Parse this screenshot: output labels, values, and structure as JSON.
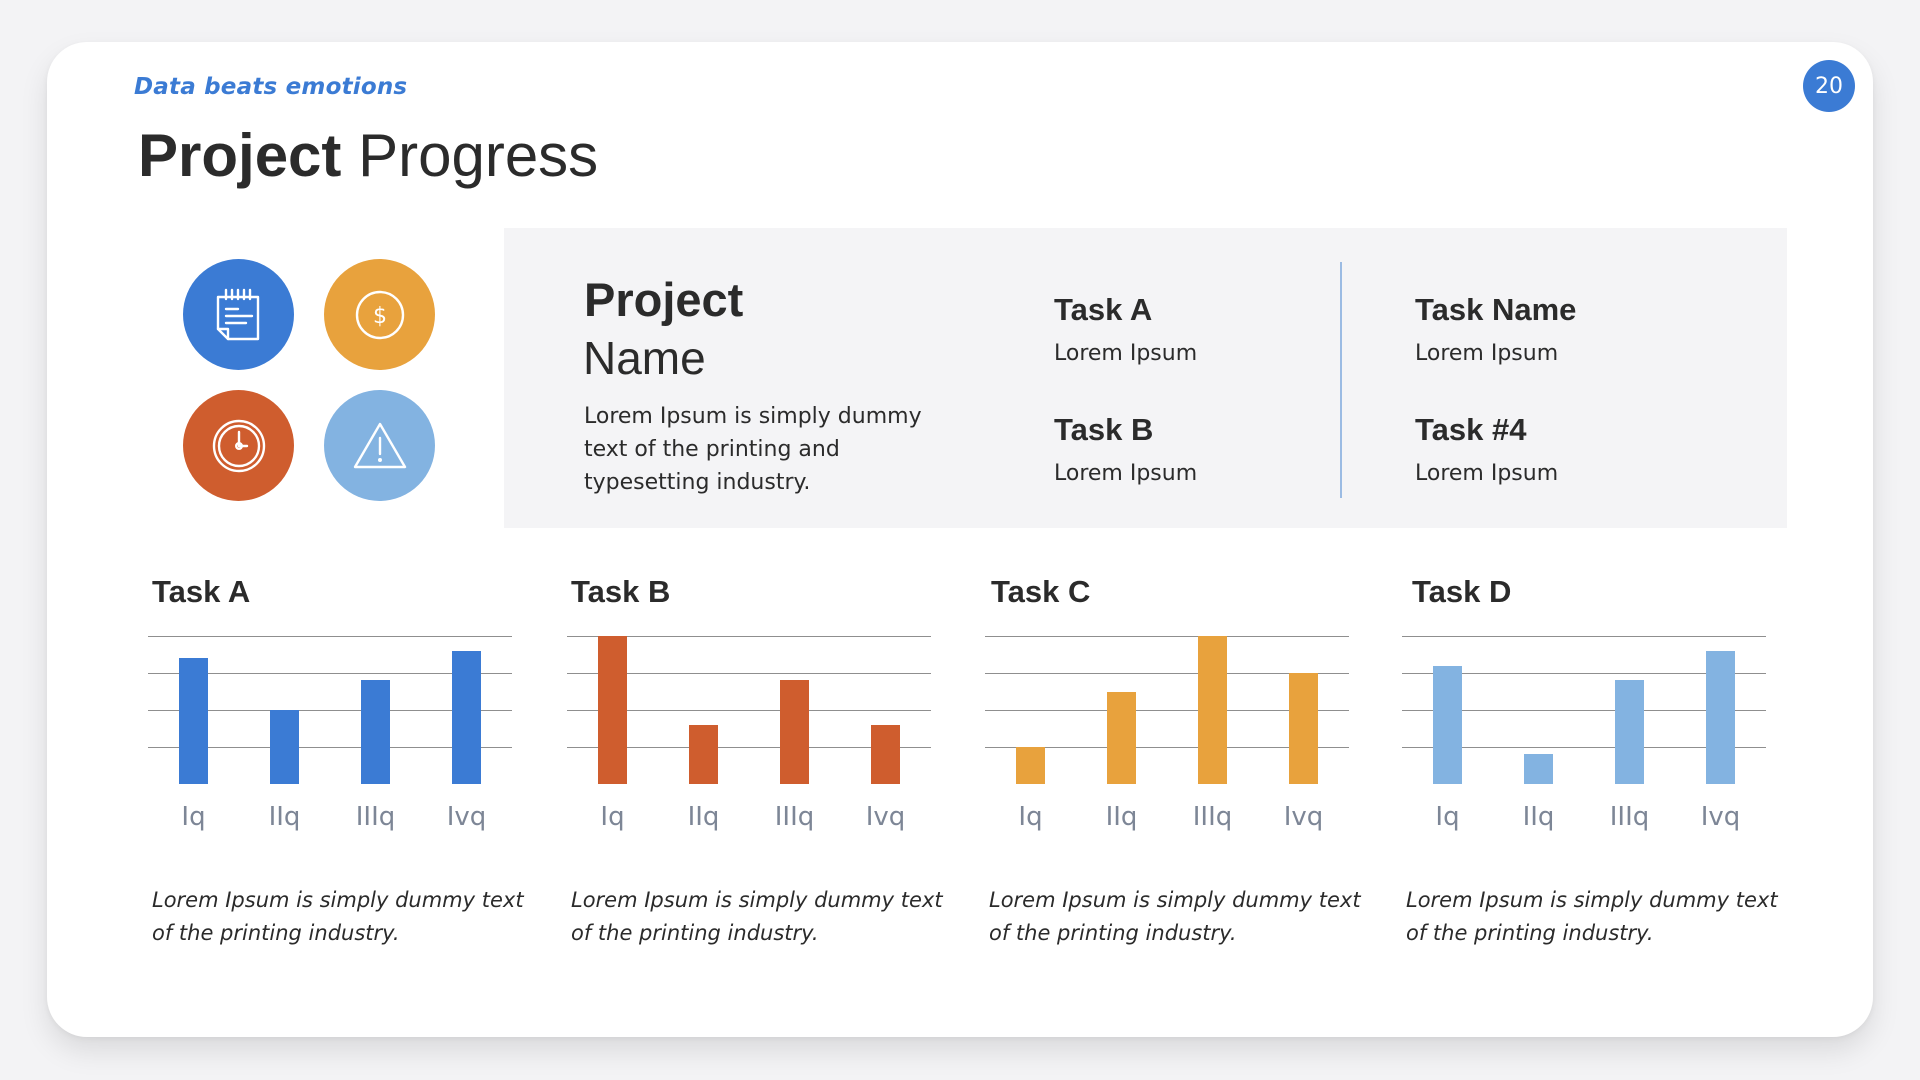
{
  "header": {
    "kicker": "Data beats emotions",
    "title_bold": "Project",
    "title_light": "Progress",
    "page_number": "20"
  },
  "icons": [
    {
      "name": "notepad-icon",
      "color": "#3b7bd4"
    },
    {
      "name": "dollar-coin-icon",
      "color": "#e8a23d"
    },
    {
      "name": "clock-icon",
      "color": "#cf5d2e"
    },
    {
      "name": "warning-icon",
      "color": "#83b3e1"
    }
  ],
  "project": {
    "title_bold": "Project",
    "title_light": "Name",
    "description": "Lorem Ipsum is simply dummy text of the printing and typesetting industry.",
    "tasks": [
      {
        "name": "Task A",
        "value": "Lorem Ipsum"
      },
      {
        "name": "Task B",
        "value": "Lorem Ipsum"
      },
      {
        "name": "Task Name",
        "value": "Lorem Ipsum"
      },
      {
        "name": "Task #4",
        "value": "Lorem Ipsum"
      }
    ]
  },
  "colors": {
    "accent": "#3b7bd4",
    "task_a": "#3b7bd4",
    "task_b": "#cf5d2e",
    "task_c": "#e8a23d",
    "task_d": "#83b3e1",
    "axis_label": "#7d8696",
    "gridline": "#8f8f8f"
  },
  "chart_data": [
    {
      "type": "bar",
      "title": "Task A",
      "categories": [
        "Iq",
        "IIq",
        "IIIq",
        "Ivq"
      ],
      "values": [
        3.4,
        2.0,
        2.8,
        3.6
      ],
      "color": "#3b7bd4",
      "ylim": [
        0,
        4
      ],
      "grid": true,
      "xlabel": "",
      "ylabel": "",
      "caption": "Lorem Ipsum is simply dummy text of the printing industry."
    },
    {
      "type": "bar",
      "title": "Task B",
      "categories": [
        "Iq",
        "IIq",
        "IIIq",
        "Ivq"
      ],
      "values": [
        4.0,
        1.6,
        2.8,
        1.6
      ],
      "color": "#cf5d2e",
      "ylim": [
        0,
        4
      ],
      "grid": true,
      "xlabel": "",
      "ylabel": "",
      "caption": "Lorem Ipsum is simply dummy text of the printing industry."
    },
    {
      "type": "bar",
      "title": "Task C",
      "categories": [
        "Iq",
        "IIq",
        "IIIq",
        "Ivq"
      ],
      "values": [
        1.0,
        2.5,
        4.0,
        3.0
      ],
      "color": "#e8a23d",
      "ylim": [
        0,
        4
      ],
      "grid": true,
      "xlabel": "",
      "ylabel": "",
      "caption": "Lorem Ipsum is simply dummy text of the printing industry."
    },
    {
      "type": "bar",
      "title": "Task D",
      "categories": [
        "Iq",
        "IIq",
        "IIIq",
        "Ivq"
      ],
      "values": [
        3.2,
        0.8,
        2.8,
        3.6
      ],
      "color": "#83b3e1",
      "ylim": [
        0,
        4
      ],
      "grid": true,
      "xlabel": "",
      "ylabel": "",
      "caption": "Lorem Ipsum is simply dummy text of the printing industry."
    }
  ]
}
